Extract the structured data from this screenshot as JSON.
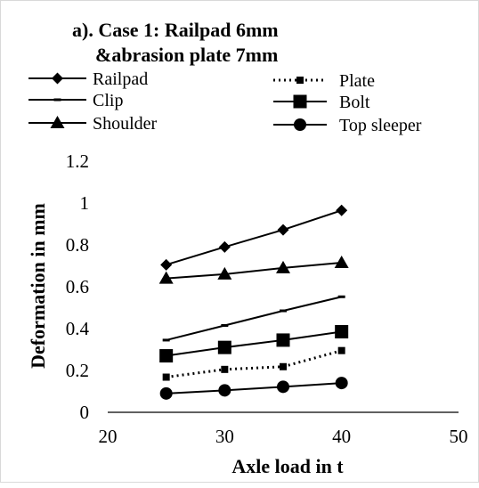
{
  "chart_data": {
    "type": "line",
    "title_line1": "a). Case 1: Railpad 6mm",
    "title_line2": "&abrasion plate 7mm",
    "xlabel": "Axle load in t",
    "ylabel": "Deformation in mm",
    "xlim": [
      20,
      50
    ],
    "ylim": [
      0,
      1.2
    ],
    "x_ticks": [
      "20",
      "30",
      "40",
      "50"
    ],
    "y_ticks": [
      "0",
      "0.2",
      "0.4",
      "0.6",
      "0.8",
      "1",
      "1.2"
    ],
    "x": [
      25,
      30,
      35,
      40
    ],
    "grid": false,
    "legend_position": "top",
    "series": [
      {
        "name": "Railpad",
        "marker": "diamond",
        "dash": false,
        "values": [
          0.705,
          0.79,
          0.872,
          0.965
        ]
      },
      {
        "name": "Plate",
        "marker": "small-square",
        "dash": true,
        "values": [
          0.168,
          0.205,
          0.218,
          0.295
        ]
      },
      {
        "name": "Clip",
        "marker": "dash",
        "dash": false,
        "values": [
          0.345,
          0.415,
          0.485,
          0.552
        ]
      },
      {
        "name": "Bolt",
        "marker": "square",
        "dash": false,
        "values": [
          0.27,
          0.31,
          0.345,
          0.385
        ]
      },
      {
        "name": "Shoulder",
        "marker": "triangle",
        "dash": false,
        "values": [
          0.64,
          0.66,
          0.69,
          0.715
        ]
      },
      {
        "name": "Top sleeper",
        "marker": "circle",
        "dash": false,
        "values": [
          0.09,
          0.105,
          0.122,
          0.14
        ]
      }
    ]
  }
}
